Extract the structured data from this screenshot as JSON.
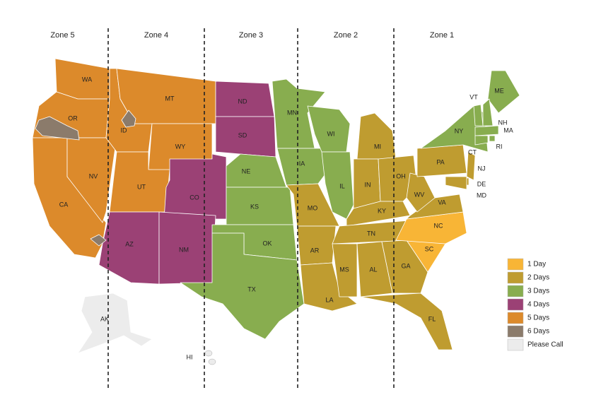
{
  "zones": [
    "Zone 5",
    "Zone 4",
    "Zone 3",
    "Zone 2",
    "Zone 1"
  ],
  "legend": [
    {
      "label": "1 Day",
      "color": "#f8b536"
    },
    {
      "label": "2 Days",
      "color": "#bf9c30"
    },
    {
      "label": "3 Days",
      "color": "#88ad4f"
    },
    {
      "label": "4 Days",
      "color": "#9b4175"
    },
    {
      "label": "5 Days",
      "color": "#dc8a2b"
    },
    {
      "label": "6 Days",
      "color": "#8b7b6b"
    },
    {
      "label": "Please Call",
      "color": "#ececec"
    }
  ],
  "states": [
    {
      "label": "WA",
      "color": "#dc8a2b"
    },
    {
      "label": "OR",
      "color": "#dc8a2b"
    },
    {
      "label": "CA",
      "color": "#dc8a2b"
    },
    {
      "label": "NV",
      "color": "#dc8a2b"
    },
    {
      "label": "ID",
      "color": "#dc8a2b"
    },
    {
      "label": "MT",
      "color": "#dc8a2b"
    },
    {
      "label": "WY",
      "color": "#dc8a2b"
    },
    {
      "label": "UT",
      "color": "#dc8a2b"
    },
    {
      "label": "CO",
      "color": "#9b4175"
    },
    {
      "label": "AZ",
      "color": "#9b4175"
    },
    {
      "label": "NM",
      "color": "#9b4175"
    },
    {
      "label": "ND",
      "color": "#9b4175"
    },
    {
      "label": "SD",
      "color": "#9b4175"
    },
    {
      "label": "NE",
      "color": "#88ad4f"
    },
    {
      "label": "KS",
      "color": "#88ad4f"
    },
    {
      "label": "OK",
      "color": "#88ad4f"
    },
    {
      "label": "TX",
      "color": "#88ad4f"
    },
    {
      "label": "MN",
      "color": "#88ad4f"
    },
    {
      "label": "IA",
      "color": "#88ad4f"
    },
    {
      "label": "MO",
      "color": "#bf9c30"
    },
    {
      "label": "AR",
      "color": "#bf9c30"
    },
    {
      "label": "LA",
      "color": "#bf9c30"
    },
    {
      "label": "WI",
      "color": "#88ad4f"
    },
    {
      "label": "IL",
      "color": "#88ad4f"
    },
    {
      "label": "MI",
      "color": "#bf9c30"
    },
    {
      "label": "IN",
      "color": "#bf9c30"
    },
    {
      "label": "OH",
      "color": "#bf9c30"
    },
    {
      "label": "KY",
      "color": "#bf9c30"
    },
    {
      "label": "TN",
      "color": "#bf9c30"
    },
    {
      "label": "MS",
      "color": "#bf9c30"
    },
    {
      "label": "AL",
      "color": "#bf9c30"
    },
    {
      "label": "GA",
      "color": "#bf9c30"
    },
    {
      "label": "FL",
      "color": "#bf9c30"
    },
    {
      "label": "SC",
      "color": "#f8b536"
    },
    {
      "label": "NC",
      "color": "#f8b536"
    },
    {
      "label": "VA",
      "color": "#bf9c30"
    },
    {
      "label": "WV",
      "color": "#bf9c30"
    },
    {
      "label": "PA",
      "color": "#bf9c30"
    },
    {
      "label": "NY",
      "color": "#88ad4f"
    },
    {
      "label": "ME",
      "color": "#88ad4f"
    },
    {
      "label": "VT",
      "color": "#88ad4f"
    },
    {
      "label": "NH",
      "color": "#88ad4f"
    },
    {
      "label": "MA",
      "color": "#88ad4f"
    },
    {
      "label": "RI",
      "color": "#88ad4f"
    },
    {
      "label": "CT",
      "color": "#88ad4f"
    },
    {
      "label": "NJ",
      "color": "#bf9c30"
    },
    {
      "label": "DE",
      "color": "#bf9c30"
    },
    {
      "label": "MD",
      "color": "#bf9c30"
    },
    {
      "label": "AK",
      "color": "#ececec"
    },
    {
      "label": "HI",
      "color": "#ececec"
    }
  ]
}
